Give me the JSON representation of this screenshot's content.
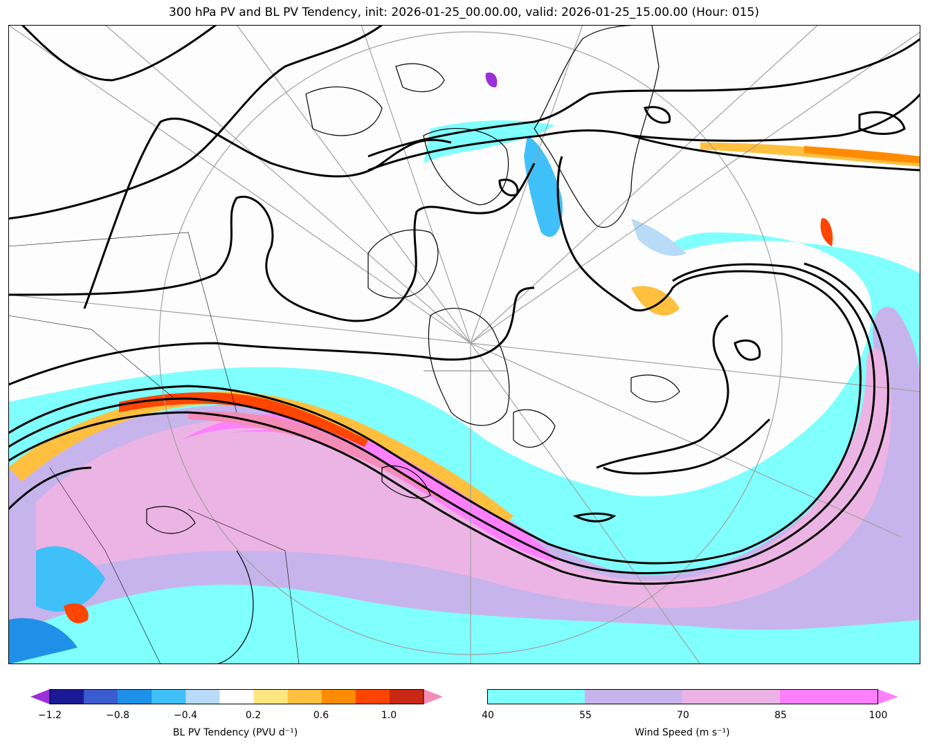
{
  "title": "300 hPa PV and BL PV Tendency, init: 2026-01-25_00.00.00, valid: 2026-01-25_15.00.00 (Hour: 015)",
  "map": {
    "projection": "north-polar stereographic",
    "colors": {
      "ocean": "#fdfdfd",
      "coast": "#000000",
      "graticule": "#a0a0a0",
      "pv_contour": "#000000"
    }
  },
  "pv_colorbar": {
    "label": "BL PV Tendency (PVU d⁻¹)",
    "ticks": [
      "−1.2",
      "−0.8",
      "−0.4",
      "0.2",
      "0.6",
      "1.0"
    ],
    "colors": [
      "#1a1a96",
      "#3b5bd0",
      "#1e90e8",
      "#40c0f8",
      "#b8dcf8",
      "#ffffff",
      "#ffe680",
      "#ffc040",
      "#ff8c00",
      "#ff4500",
      "#c82814"
    ],
    "extend_low": "#9b30d9",
    "extend_high": "#f48cb8"
  },
  "wind_colorbar": {
    "label": "Wind Speed (m s⁻¹)",
    "ticks": [
      "40",
      "55",
      "70",
      "85",
      "100"
    ],
    "colors": [
      "#80ffff",
      "#c8b4ec",
      "#ecb4e4",
      "#ff80ff"
    ],
    "extend_high": "#ff80ff"
  }
}
